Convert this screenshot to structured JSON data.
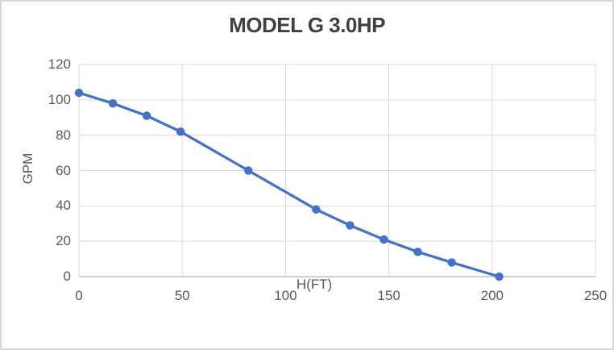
{
  "chart_data": {
    "type": "line",
    "title": "MODEL G 3.0HP",
    "xlabel": "H(FT)",
    "ylabel": "GPM",
    "x": [
      0,
      16.4,
      32.8,
      49.2,
      82.0,
      114.8,
      131.2,
      147.6,
      164.0,
      180.4,
      203.4
    ],
    "series": [
      {
        "name": "GPM",
        "values": [
          104,
          98,
          91,
          82,
          60,
          38,
          29,
          21,
          14,
          8,
          0
        ]
      }
    ],
    "xlim": [
      0,
      250
    ],
    "ylim": [
      0,
      120
    ],
    "x_ticks": [
      0,
      50,
      100,
      150,
      200,
      250
    ],
    "y_ticks": [
      0,
      20,
      40,
      60,
      80,
      100,
      120
    ],
    "grid": true,
    "legend": false,
    "colors": {
      "line": "#4472C4",
      "marker": "#4472C4",
      "gridline": "#D9D9D9",
      "axis_line": "#BFBFBF",
      "tick_label": "#595959",
      "title": "#404040",
      "frame_border": "#D8D8D8",
      "background": "#FFFFFF"
    }
  }
}
